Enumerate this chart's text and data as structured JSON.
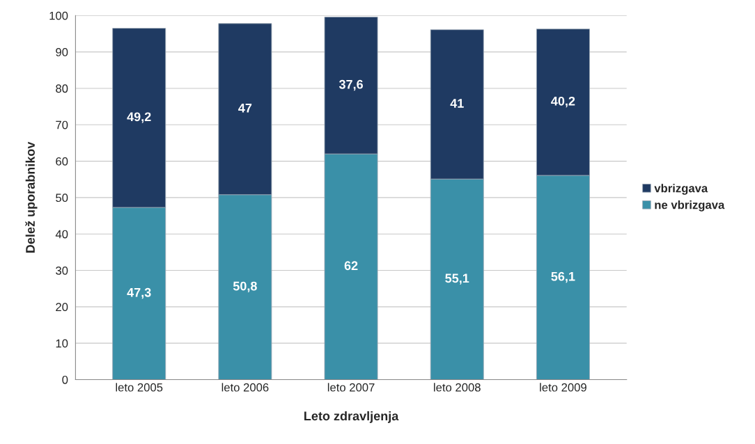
{
  "chart_data": {
    "type": "bar",
    "stacked": true,
    "xlabel": "Leto zdravljenja",
    "ylabel": "Delež uporabnikov",
    "categories": [
      "leto 2005",
      "leto 2006",
      "leto 2007",
      "leto 2008",
      "leto 2009"
    ],
    "series": [
      {
        "name": "ne vbrizgava",
        "color": "#3a90a8",
        "values": [
          47.3,
          50.8,
          62,
          55.1,
          56.1
        ],
        "value_labels": [
          "47,3",
          "50,8",
          "62",
          "55,1",
          "56,1"
        ]
      },
      {
        "name": "vbrizgava",
        "color": "#1f3a62",
        "values": [
          49.2,
          47,
          37.6,
          41,
          40.2
        ],
        "value_labels": [
          "49,2",
          "47",
          "37,6",
          "41",
          "40,2"
        ]
      }
    ],
    "ylim": [
      0,
      100
    ],
    "yticks": [
      0,
      10,
      20,
      30,
      40,
      50,
      60,
      70,
      80,
      90,
      100
    ],
    "grid": "y",
    "legend": "right"
  }
}
